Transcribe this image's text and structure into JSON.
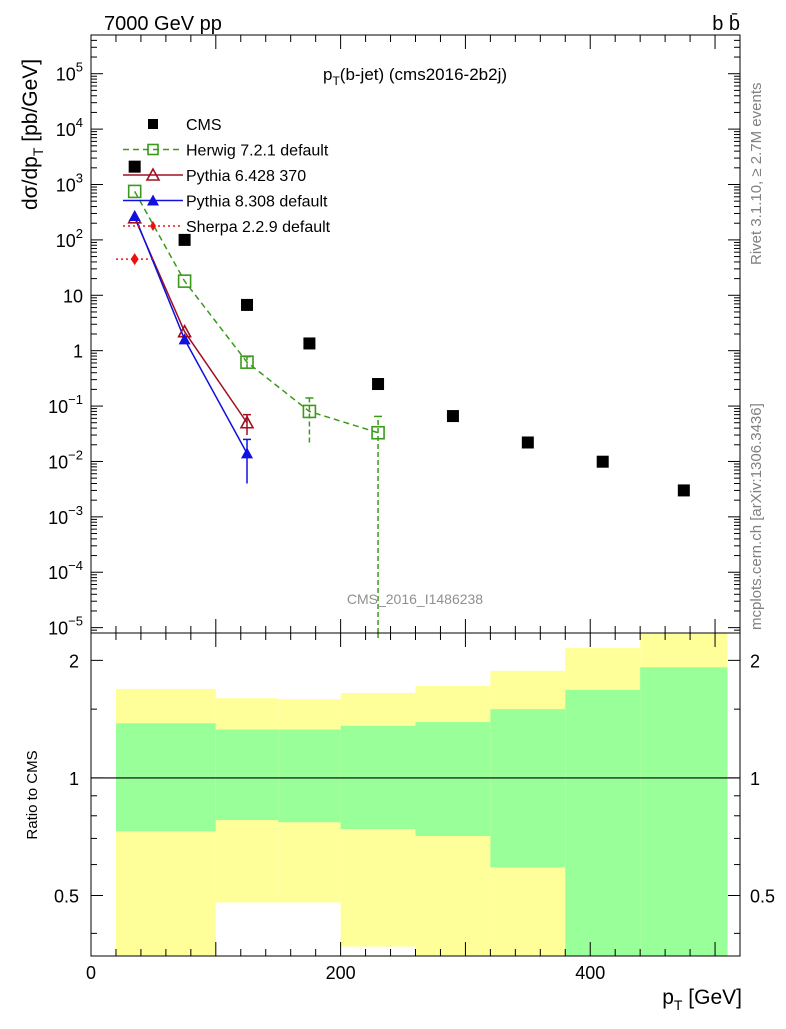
{
  "header": {
    "left": "7000 GeV pp",
    "right": "b b̄"
  },
  "side_notes": {
    "rivet": "Rivet 3.1.10, ≥ 2.7M events",
    "mcplots": "mcplots.cern.ch [arXiv:1306.3436]"
  },
  "colors": {
    "cms": "#000000",
    "herwig": "#3a9a1a",
    "pythia6": "#a01020",
    "pythia8": "#1010e0",
    "sherpa": "#ee1010",
    "band_inner": "#99ff99",
    "band_outer": "#ffff99"
  },
  "chart_data": [
    {
      "type": "scatter",
      "panel": "main",
      "title": "p_T(b-jet) (cms2016-2b2j)",
      "title_parts": {
        "main": "p",
        "sub": "T",
        "rest": "(b-jet) (cms2016-2b2j)"
      },
      "watermark": "CMS_2016_I1486238",
      "ylabel_parts": {
        "pre": "dσ/dp",
        "sub": "T",
        "post": " [pb/GeV]"
      },
      "yscale": "log",
      "xlim": [
        0,
        520
      ],
      "ylim": [
        8e-06,
        500000
      ],
      "yticks": [
        {
          "value": 100000,
          "base": "10",
          "exp": "5"
        },
        {
          "value": 10000,
          "base": "10",
          "exp": "4"
        },
        {
          "value": 1000,
          "base": "10",
          "exp": "3"
        },
        {
          "value": 100,
          "base": "10",
          "exp": "2"
        },
        {
          "value": 10,
          "base": "10",
          "exp": ""
        },
        {
          "value": 1,
          "base": "1",
          "exp": ""
        },
        {
          "value": 0.1,
          "base": "10",
          "exp": "−1"
        },
        {
          "value": 0.01,
          "base": "10",
          "exp": "−2"
        },
        {
          "value": 0.001,
          "base": "10",
          "exp": "−3"
        },
        {
          "value": 0.0001,
          "base": "10",
          "exp": "−4"
        },
        {
          "value": 1e-05,
          "base": "10",
          "exp": "−5"
        }
      ],
      "legend_position": "top-left",
      "series": [
        {
          "name": "CMS",
          "key": "cms",
          "marker": "square-filled",
          "line": "none",
          "points": [
            {
              "x": 35,
              "y": 2100
            },
            {
              "x": 75,
              "y": 100
            },
            {
              "x": 125,
              "y": 6.7
            },
            {
              "x": 175,
              "y": 1.35
            },
            {
              "x": 230,
              "y": 0.25
            },
            {
              "x": 290,
              "y": 0.066
            },
            {
              "x": 350,
              "y": 0.022
            },
            {
              "x": 410,
              "y": 0.0099
            },
            {
              "x": 475,
              "y": 0.003
            }
          ]
        },
        {
          "name": "Herwig 7.2.1 default",
          "key": "herwig",
          "marker": "square-open",
          "line": "dashed",
          "points": [
            {
              "x": 35,
              "y": 750
            },
            {
              "x": 75,
              "y": 18
            },
            {
              "x": 125,
              "y": 0.62,
              "ylo": 0.48,
              "yhi": 0.78
            },
            {
              "x": 175,
              "y": 0.08,
              "ylo": 0.022,
              "yhi": 0.14
            },
            {
              "x": 230,
              "y": 0.033,
              "ylo": 1e-07,
              "yhi": 0.065
            }
          ]
        },
        {
          "name": "Pythia 6.428 370",
          "key": "pythia6",
          "marker": "triangle-open",
          "line": "solid",
          "points": [
            {
              "x": 35,
              "y": 250
            },
            {
              "x": 75,
              "y": 2.2
            },
            {
              "x": 125,
              "y": 0.05,
              "ylo": 0.03,
              "yhi": 0.07
            }
          ]
        },
        {
          "name": "Pythia 8.308 default",
          "key": "pythia8",
          "marker": "triangle-filled",
          "line": "solid",
          "points": [
            {
              "x": 35,
              "y": 270
            },
            {
              "x": 75,
              "y": 1.6
            },
            {
              "x": 125,
              "y": 0.014,
              "ylo": 0.004,
              "yhi": 0.025
            }
          ]
        },
        {
          "name": "Sherpa 2.2.9 default",
          "key": "sherpa",
          "marker": "diamond-filled",
          "line": "dotted",
          "points": [
            {
              "x": 35,
              "y": 45,
              "xlo": 20,
              "xhi": 50
            }
          ]
        }
      ]
    },
    {
      "type": "area",
      "panel": "ratio",
      "ylabel": "Ratio to CMS",
      "yscale": "log",
      "xlabel_parts": {
        "main": "p",
        "sub": "T",
        "post": " [GeV]"
      },
      "xlim": [
        0,
        520
      ],
      "ylim": [
        0.35,
        2.35
      ],
      "yticks": [
        {
          "value": 0.5,
          "label": "0.5"
        },
        {
          "value": 1,
          "label": "1"
        },
        {
          "value": 2,
          "label": "2"
        }
      ],
      "xticks": [
        {
          "value": 0,
          "label": "0"
        },
        {
          "value": 200,
          "label": "200"
        },
        {
          "value": 400,
          "label": "400"
        }
      ],
      "reference_line": 1,
      "bins": [
        {
          "xlo": 20,
          "xhi": 100,
          "inner_lo": 0.73,
          "inner_hi": 1.38,
          "outer_lo": 0.35,
          "outer_hi": 1.69
        },
        {
          "xlo": 100,
          "xhi": 150,
          "inner_lo": 0.78,
          "inner_hi": 1.33,
          "outer_lo": 0.48,
          "outer_hi": 1.6
        },
        {
          "xlo": 150,
          "xhi": 200,
          "inner_lo": 0.77,
          "inner_hi": 1.33,
          "outer_lo": 0.48,
          "outer_hi": 1.59
        },
        {
          "xlo": 200,
          "xhi": 260,
          "inner_lo": 0.74,
          "inner_hi": 1.36,
          "outer_lo": 0.37,
          "outer_hi": 1.65
        },
        {
          "xlo": 260,
          "xhi": 320,
          "inner_lo": 0.71,
          "inner_hi": 1.39,
          "outer_lo": 0.35,
          "outer_hi": 1.72
        },
        {
          "xlo": 320,
          "xhi": 380,
          "inner_lo": 0.59,
          "inner_hi": 1.5,
          "outer_lo": 0.35,
          "outer_hi": 1.88
        },
        {
          "xlo": 380,
          "xhi": 440,
          "inner_lo": 0.35,
          "inner_hi": 1.68,
          "outer_lo": 0.35,
          "outer_hi": 2.15
        },
        {
          "xlo": 440,
          "xhi": 510,
          "inner_lo": 0.35,
          "inner_hi": 1.92,
          "outer_lo": 0.35,
          "outer_hi": 2.35
        }
      ]
    }
  ]
}
